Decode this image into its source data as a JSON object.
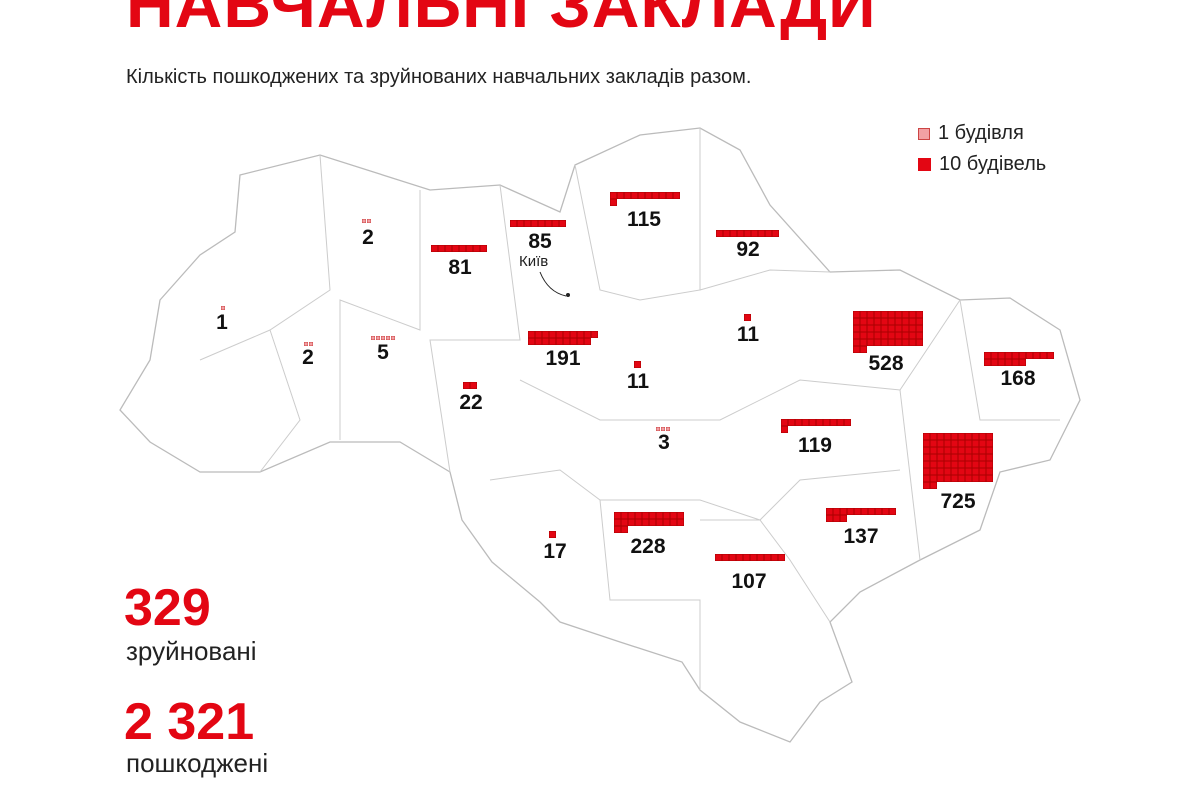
{
  "header": {
    "title": "НАВЧАЛЬНІ ЗАКЛАДИ",
    "subtitle": "Кількість пошкоджених та зруйнованих навчальних закладів разом."
  },
  "legend": {
    "one": "1 будівля",
    "ten": "10 будівель"
  },
  "colors": {
    "accent": "#e30613",
    "single": "#f2a0a4"
  },
  "map": {
    "city_label": "Київ",
    "regions": [
      {
        "value": 2
      },
      {
        "value": 81
      },
      {
        "value": 85
      },
      {
        "value": 115
      },
      {
        "value": 92
      },
      {
        "value": 1
      },
      {
        "value": 2
      },
      {
        "value": 5
      },
      {
        "value": 22
      },
      {
        "value": 191
      },
      {
        "value": 11
      },
      {
        "value": 11
      },
      {
        "value": 528
      },
      {
        "value": 168
      },
      {
        "value": 3
      },
      {
        "value": 119
      },
      {
        "value": 725
      },
      {
        "value": 17
      },
      {
        "value": 228
      },
      {
        "value": 107
      },
      {
        "value": 137
      }
    ]
  },
  "stats": {
    "destroyed_value": "329",
    "destroyed_label": "зруйновані",
    "damaged_value": "2 321",
    "damaged_label": "пошкоджені"
  }
}
